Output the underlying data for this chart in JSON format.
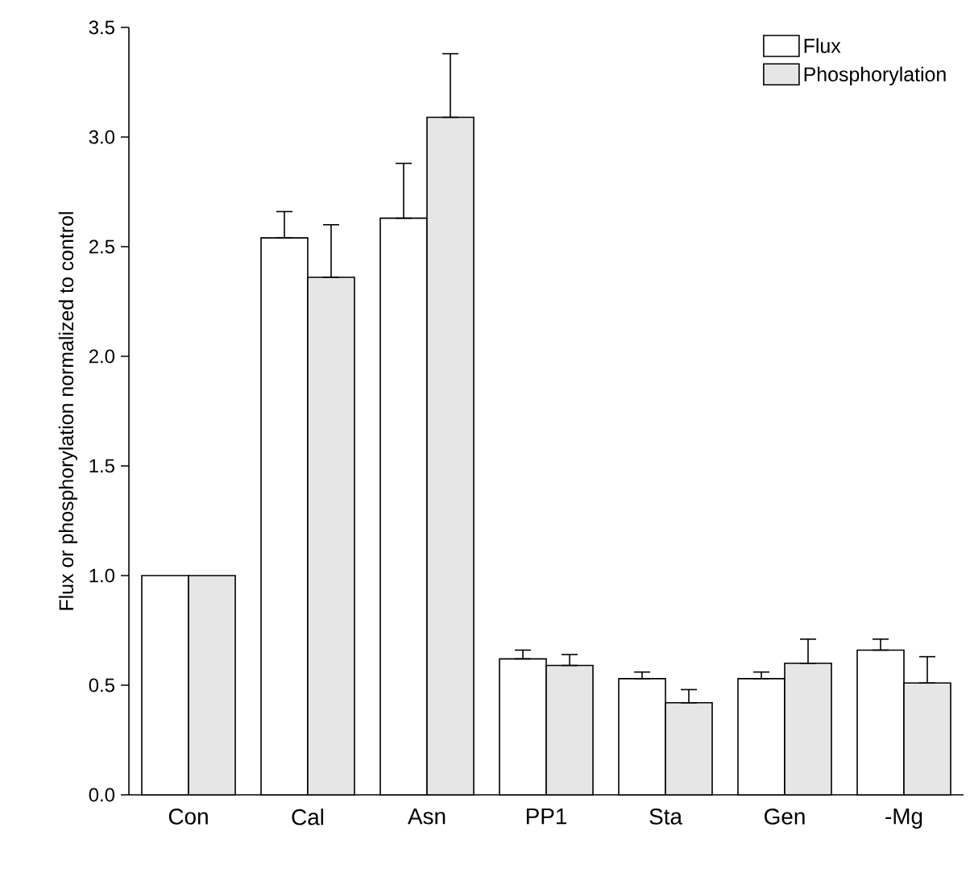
{
  "chart_data": {
    "type": "bar",
    "ylabel": "Flux or phosphorylation normalized to control",
    "categories": [
      "Con",
      "Cal",
      "Asn",
      "PP1",
      "Sta",
      "Gen",
      "-Mg"
    ],
    "series": [
      {
        "name": "Flux",
        "color": "#ffffff",
        "values": [
          1.0,
          2.54,
          2.63,
          0.62,
          0.53,
          0.53,
          0.66
        ],
        "errors": [
          null,
          [
            2.54,
            2.66
          ],
          [
            2.63,
            2.88
          ],
          [
            0.62,
            0.66
          ],
          [
            0.53,
            0.56
          ],
          [
            0.53,
            0.56
          ],
          [
            0.66,
            0.71
          ]
        ]
      },
      {
        "name": "Phosphorylation",
        "color": "#e6e6e6",
        "values": [
          1.0,
          2.36,
          3.09,
          0.59,
          0.42,
          0.6,
          0.51
        ],
        "errors": [
          null,
          [
            2.36,
            2.6
          ],
          [
            3.09,
            3.38
          ],
          [
            0.59,
            0.64
          ],
          [
            0.42,
            0.48
          ],
          [
            0.6,
            0.71
          ],
          [
            0.51,
            0.63
          ]
        ]
      }
    ],
    "ylim": [
      0,
      3.5
    ],
    "yticks": [
      {
        "value": 0,
        "label": "0.0"
      },
      {
        "value": 0.5,
        "label": "0.5"
      },
      {
        "value": 1,
        "label": "1.0"
      },
      {
        "value": 1.5,
        "label": "1.5"
      },
      {
        "value": 2,
        "label": "2.0"
      },
      {
        "value": 2.5,
        "label": "2.5"
      },
      {
        "value": 3,
        "label": "3.0"
      },
      {
        "value": 3.5,
        "label": "3.5"
      }
    ],
    "legend": "top right"
  }
}
